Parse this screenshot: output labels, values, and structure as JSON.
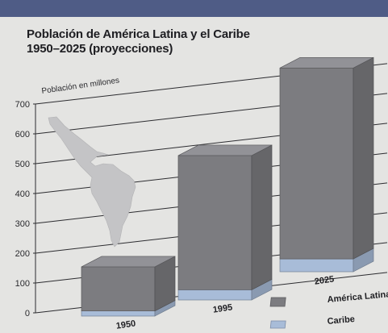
{
  "header": {
    "bar_color": "#4f5c86"
  },
  "chart_data": {
    "type": "bar",
    "stacked": true,
    "title": "Población de América Latina y el Caribe",
    "subtitle": "1950–2025 (proyecciones)",
    "ylabel": "Población en millones",
    "xlabel": "",
    "ylim": [
      0,
      700
    ],
    "yticks": [
      "0",
      "100",
      "200",
      "300",
      "400",
      "500",
      "600",
      "700"
    ],
    "categories": [
      "1950",
      "1995",
      "2025"
    ],
    "series": [
      {
        "name": "Caribe",
        "values": [
          17,
          34,
          43
        ],
        "color": "#a8bcd8"
      },
      {
        "name": "América Latina",
        "values": [
          148,
          450,
          640
        ],
        "color": "#7c7c80"
      }
    ],
    "legend": [
      "América Latina",
      "Caribe"
    ],
    "legend_position": "bottom-right",
    "grid": true,
    "background_map": "map-of-latin-america"
  }
}
